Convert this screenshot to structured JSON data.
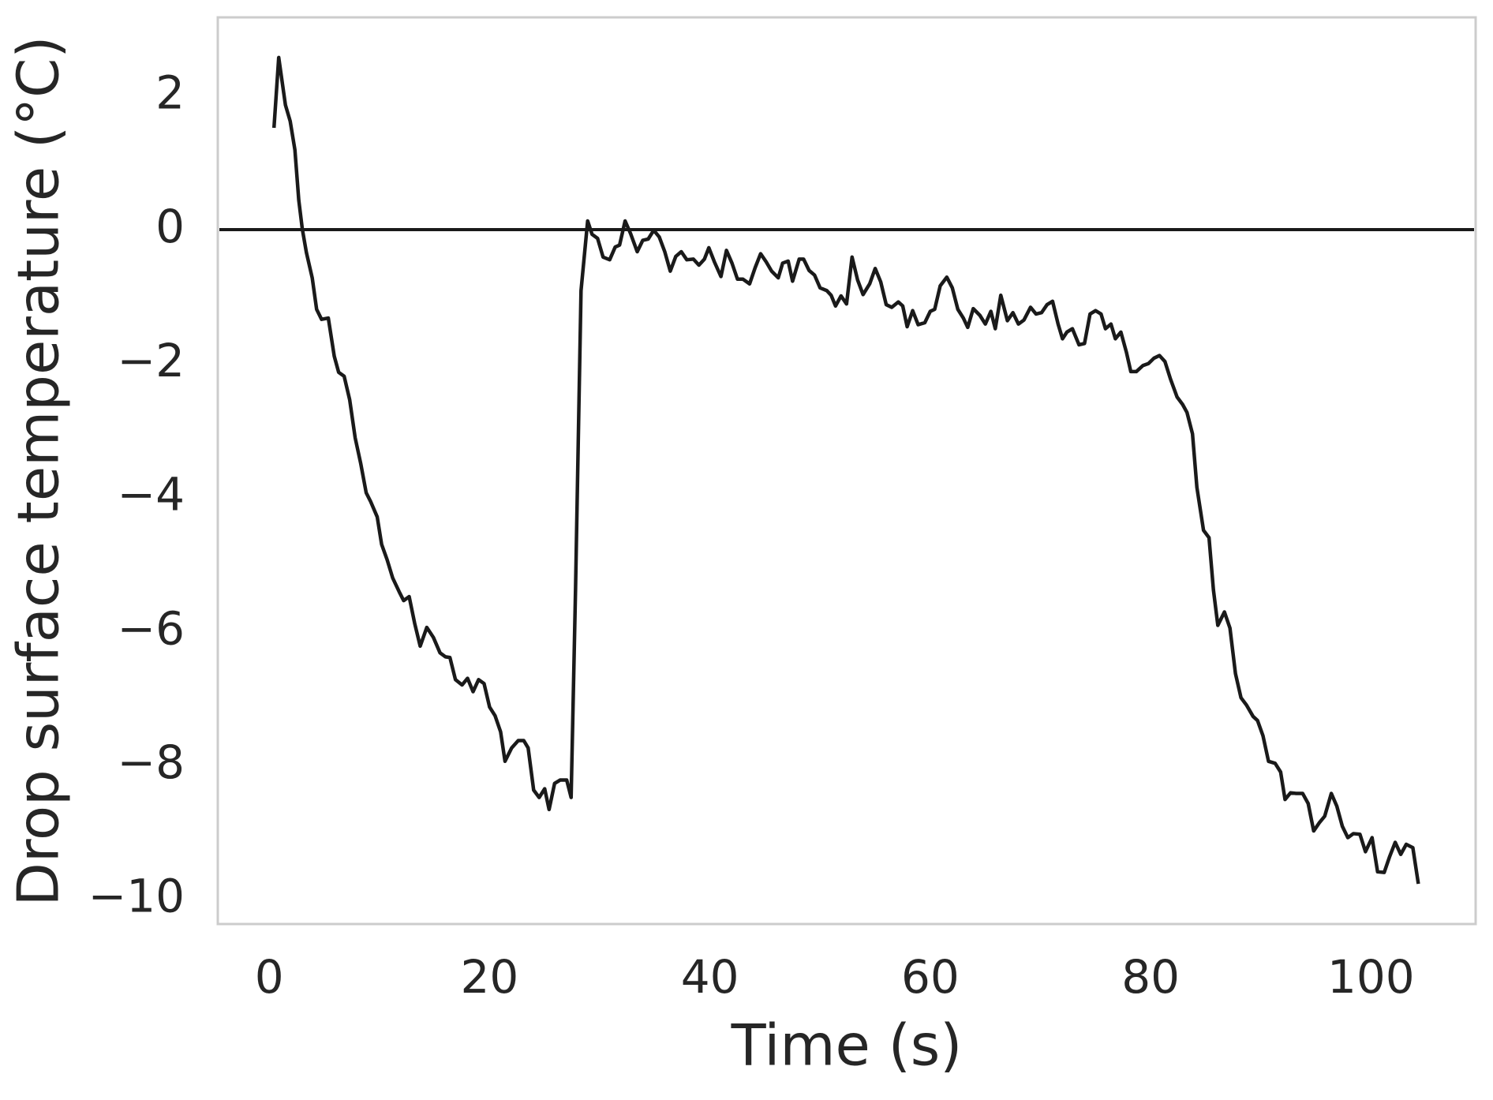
{
  "chart_data": {
    "type": "line",
    "xlabel": "Time (s)",
    "ylabel": "Drop surface temperature (°C)",
    "x": [
      0.43,
      0.86,
      1.47,
      1.9,
      2.33,
      2.68,
      3.0,
      3.37,
      3.9,
      4.3,
      4.75,
      5.36,
      5.9,
      6.3,
      6.8,
      7.3,
      7.8,
      8.3,
      8.8,
      9.2,
      9.8,
      10.2,
      10.7,
      11.2,
      11.8,
      12.2,
      12.7,
      13.2,
      13.7,
      14.3,
      14.9,
      15.5,
      16.0,
      16.4,
      16.9,
      17.5,
      18.0,
      18.5,
      19.0,
      19.5,
      20.0,
      20.5,
      21.0,
      21.4,
      22.0,
      22.6,
      23.1,
      23.5,
      24.0,
      24.5,
      25.0,
      25.4,
      25.9,
      26.4,
      27.0,
      27.4,
      27.8,
      28.3,
      28.9,
      29.3,
      29.8,
      30.3,
      30.9,
      31.4,
      31.8,
      32.3,
      32.8,
      33.4,
      33.9,
      34.4,
      34.9,
      35.4,
      35.9,
      36.4,
      36.9,
      37.4,
      37.9,
      38.5,
      39.0,
      39.5,
      39.9,
      40.4,
      41.0,
      41.5,
      42.0,
      42.5,
      43.0,
      43.6,
      44.1,
      44.6,
      45.1,
      45.6,
      46.2,
      46.6,
      47.1,
      47.5,
      48.1,
      48.5,
      49.0,
      49.5,
      50.0,
      50.6,
      51.0,
      51.4,
      51.9,
      52.4,
      52.9,
      53.4,
      53.9,
      54.5,
      55.0,
      55.5,
      56.0,
      56.5,
      57.1,
      57.5,
      57.9,
      58.4,
      58.9,
      59.5,
      60.0,
      60.4,
      60.9,
      61.5,
      62.0,
      62.5,
      63.0,
      63.4,
      63.9,
      64.5,
      65.0,
      65.5,
      65.9,
      66.4,
      67.0,
      67.5,
      68.0,
      68.5,
      69.1,
      69.6,
      70.1,
      70.6,
      71.1,
      71.6,
      72.0,
      72.4,
      72.9,
      73.5,
      74.0,
      74.5,
      75.0,
      75.5,
      75.9,
      76.4,
      76.8,
      77.3,
      77.8,
      78.2,
      78.7,
      79.3,
      79.8,
      80.3,
      80.8,
      81.3,
      81.8,
      82.4,
      82.9,
      83.3,
      83.8,
      84.2,
      84.8,
      85.3,
      85.7,
      86.1,
      86.7,
      87.2,
      87.7,
      88.2,
      88.7,
      89.3,
      89.7,
      90.2,
      90.7,
      91.3,
      91.8,
      92.2,
      92.7,
      93.2,
      93.8,
      94.3,
      94.8,
      95.3,
      95.8,
      96.4,
      96.9,
      97.4,
      97.9,
      98.4,
      99.0,
      99.5,
      100.1,
      100.6,
      101.2,
      101.7,
      102.2,
      102.7,
      103.2,
      103.8,
      104.3
    ],
    "series": [
      {
        "color": "#1a1a1a",
        "values": [
          1.52,
          2.57,
          1.86,
          1.62,
          1.19,
          0.44,
          0.01,
          -0.34,
          -0.72,
          -1.19,
          -1.34,
          -1.32,
          -1.89,
          -2.13,
          -2.19,
          -2.54,
          -3.11,
          -3.49,
          -3.93,
          -4.06,
          -4.29,
          -4.7,
          -4.93,
          -5.2,
          -5.41,
          -5.54,
          -5.48,
          -5.88,
          -6.22,
          -5.94,
          -6.09,
          -6.32,
          -6.38,
          -6.39,
          -6.72,
          -6.8,
          -6.7,
          -6.9,
          -6.72,
          -6.78,
          -7.13,
          -7.26,
          -7.5,
          -7.94,
          -7.74,
          -7.63,
          -7.63,
          -7.74,
          -8.37,
          -8.48,
          -8.35,
          -8.66,
          -8.27,
          -8.22,
          -8.22,
          -8.48,
          -5.38,
          -0.91,
          0.13,
          -0.07,
          -0.13,
          -0.41,
          -0.45,
          -0.26,
          -0.23,
          0.13,
          -0.06,
          -0.33,
          -0.16,
          -0.14,
          -0.01,
          -0.11,
          -0.33,
          -0.62,
          -0.4,
          -0.33,
          -0.45,
          -0.44,
          -0.53,
          -0.44,
          -0.27,
          -0.48,
          -0.7,
          -0.31,
          -0.5,
          -0.74,
          -0.74,
          -0.81,
          -0.57,
          -0.36,
          -0.48,
          -0.62,
          -0.72,
          -0.5,
          -0.47,
          -0.77,
          -0.44,
          -0.44,
          -0.61,
          -0.68,
          -0.87,
          -0.91,
          -0.98,
          -1.14,
          -0.99,
          -1.11,
          -0.41,
          -0.75,
          -0.97,
          -0.81,
          -0.58,
          -0.78,
          -1.12,
          -1.16,
          -1.08,
          -1.14,
          -1.45,
          -1.21,
          -1.42,
          -1.39,
          -1.22,
          -1.19,
          -0.84,
          -0.71,
          -0.87,
          -1.19,
          -1.32,
          -1.46,
          -1.18,
          -1.28,
          -1.41,
          -1.22,
          -1.48,
          -0.98,
          -1.36,
          -1.24,
          -1.41,
          -1.35,
          -1.16,
          -1.26,
          -1.24,
          -1.12,
          -1.07,
          -1.41,
          -1.63,
          -1.53,
          -1.48,
          -1.72,
          -1.7,
          -1.26,
          -1.21,
          -1.26,
          -1.48,
          -1.41,
          -1.63,
          -1.53,
          -1.83,
          -2.12,
          -2.12,
          -2.03,
          -2.0,
          -1.92,
          -1.88,
          -1.97,
          -2.23,
          -2.5,
          -2.61,
          -2.73,
          -3.05,
          -3.85,
          -4.49,
          -4.6,
          -5.38,
          -5.91,
          -5.71,
          -5.95,
          -6.63,
          -6.99,
          -7.1,
          -7.27,
          -7.33,
          -7.56,
          -7.94,
          -7.97,
          -8.1,
          -8.51,
          -8.41,
          -8.42,
          -8.42,
          -8.57,
          -8.98,
          -8.86,
          -8.76,
          -8.42,
          -8.61,
          -8.91,
          -9.08,
          -9.02,
          -9.03,
          -9.29,
          -9.08,
          -9.59,
          -9.6,
          -9.36,
          -9.15,
          -9.33,
          -9.18,
          -9.23,
          -9.77
        ]
      }
    ],
    "hline": 0,
    "hline_color": "#1a1a1a",
    "xlim": [
      -4.67,
      109.5
    ],
    "ylim": [
      -10.37,
      3.17
    ],
    "xticks": [
      0,
      20,
      40,
      60,
      80,
      100
    ],
    "yticks": [
      {
        "value": -10,
        "label": "−10"
      },
      {
        "value": -8,
        "label": "−8"
      },
      {
        "value": -6,
        "label": "−6"
      },
      {
        "value": -4,
        "label": "−4"
      },
      {
        "value": -2,
        "label": "−2"
      },
      0,
      2
    ],
    "grid": false
  }
}
